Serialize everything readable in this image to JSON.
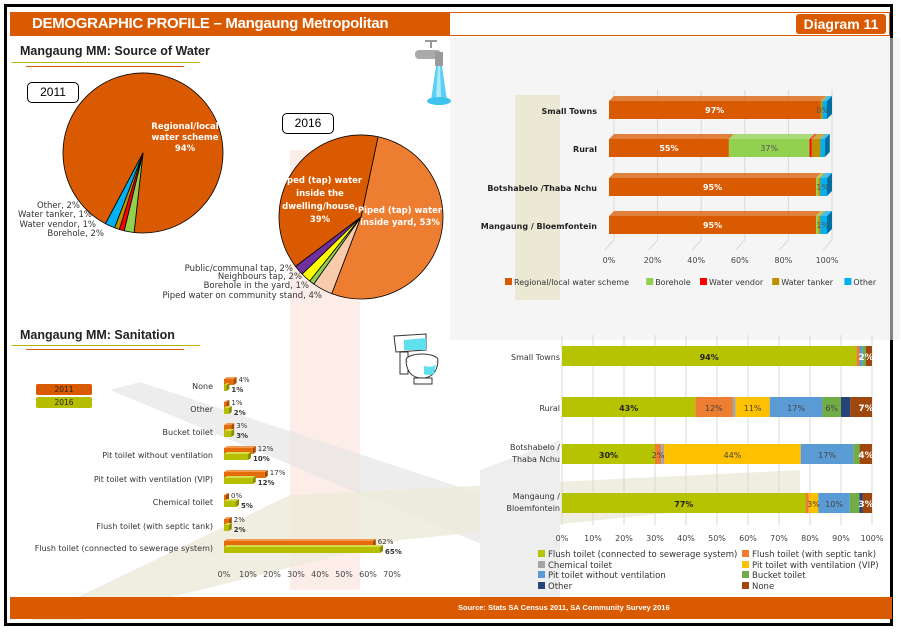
{
  "header": {
    "title": "DEMOGRAPHIC PROFILE – Mangaung Metropolitan Municipality",
    "badge": "Diagram 11"
  },
  "footer": {
    "source": "Source: Stats SA Census 2011, SA Community Survey 2016"
  },
  "icons": [
    "water-tap-icon",
    "toilet-icon"
  ],
  "colors": {
    "brand_orange": "#d95a00",
    "olive": "#b6b100"
  },
  "chart_data": [
    {
      "id": "water_pie_2011",
      "type": "pie",
      "section_title": "Mangaung MM: Source of Water",
      "title": "2011",
      "slices": [
        {
          "label": "Regional/local water scheme",
          "value": 94,
          "color": "#d95a00"
        },
        {
          "label": "Borehole",
          "value": 2,
          "color": "#92d050"
        },
        {
          "label": "Water vendor",
          "value": 1,
          "color": "#ff0000"
        },
        {
          "label": "Water tanker",
          "value": 1,
          "color": "#bf9000"
        },
        {
          "label": "Other",
          "value": 2,
          "color": "#00b0f0"
        }
      ]
    },
    {
      "id": "water_pie_2016",
      "type": "pie",
      "title": "2016",
      "slices": [
        {
          "label": "Piped (tap) water inside yard",
          "value": 53,
          "color": "#ed7d31"
        },
        {
          "label": "Piped water on community stand",
          "value": 4,
          "color": "#f8cbad"
        },
        {
          "label": "Borehole in the yard",
          "value": 1,
          "color": "#92d050"
        },
        {
          "label": "Neighbours tap",
          "value": 2,
          "color": "#ffff00"
        },
        {
          "label": "Public/communal tap",
          "value": 2,
          "color": "#7030a0"
        },
        {
          "label": "Piped (tap) water inside the dwelling/house",
          "value": 39,
          "color": "#d95a00"
        }
      ]
    },
    {
      "id": "water_by_area",
      "type": "bar",
      "orientation": "horizontal-stacked-100",
      "categories": [
        "Small Towns",
        "Rural",
        "Botshabelo /Thaba Nchu",
        "Mangaung / Bloemfontein"
      ],
      "series": [
        {
          "name": "Regional/local water scheme",
          "color": "#d95a00",
          "values": [
            97,
            55,
            95,
            95
          ]
        },
        {
          "name": "Borehole",
          "color": "#92d050",
          "values": [
            0,
            37,
            1,
            1
          ]
        },
        {
          "name": "Water vendor",
          "color": "#ff0000",
          "values": [
            0,
            1,
            0,
            0
          ]
        },
        {
          "name": "Water tanker",
          "color": "#bf9000",
          "values": [
            1,
            4,
            1,
            1
          ]
        },
        {
          "name": "Other",
          "color": "#00b0f0",
          "values": [
            2,
            2,
            3,
            3
          ]
        }
      ],
      "data_labels": [
        {
          "category": 0,
          "series": 0,
          "text": "97%"
        },
        {
          "category": 0,
          "series": 1,
          "text": "0%"
        },
        {
          "category": 1,
          "series": 0,
          "text": "55%"
        },
        {
          "category": 1,
          "series": 1,
          "text": "37%"
        },
        {
          "category": 2,
          "series": 0,
          "text": "95%"
        },
        {
          "category": 2,
          "series": 1,
          "text": "1%"
        },
        {
          "category": 3,
          "series": 0,
          "text": "95%"
        },
        {
          "category": 3,
          "series": 1,
          "text": "1%"
        }
      ],
      "xticks": [
        "0%",
        "20%",
        "40%",
        "60%",
        "80%",
        "100%"
      ],
      "xlim": [
        0,
        100
      ],
      "legend": "bottom",
      "grid": true
    },
    {
      "id": "sanitation_2011_2016",
      "type": "bar",
      "orientation": "horizontal-grouped",
      "section_title": "Mangaung MM: Sanitation",
      "categories": [
        "None",
        "Other",
        "Bucket toilet",
        "Pit toilet without ventilation",
        "Pit toilet with ventilation (VIP)",
        "Chemical toilet",
        "Flush toilet (with septic tank)",
        "Flush toilet (connected to sewerage system)"
      ],
      "series": [
        {
          "name": "2011",
          "color": "#e46c0a",
          "values": [
            4,
            1,
            3,
            12,
            17,
            0,
            2,
            62
          ]
        },
        {
          "name": "2016",
          "color": "#b6be00",
          "values": [
            1,
            2,
            3,
            10,
            12,
            5,
            2,
            65
          ]
        }
      ],
      "xticks": [
        "0%",
        "10%",
        "20%",
        "30%",
        "40%",
        "50%",
        "60%",
        "70%"
      ],
      "xlim": [
        0,
        70
      ],
      "legend": "left"
    },
    {
      "id": "sanitation_by_area",
      "type": "bar",
      "orientation": "horizontal-stacked-100",
      "categories": [
        "Small Towns",
        "Rural",
        "Botshabelo / Thaba Nchu",
        "Mangaung / Bloemfontein"
      ],
      "series": [
        {
          "name": "Flush toilet (connected to sewerage system)",
          "color": "#b6c300",
          "values": [
            94,
            43,
            30,
            77
          ]
        },
        {
          "name": "Flush toilet (with septic tank)",
          "color": "#ed7d31",
          "values": [
            1,
            12,
            2,
            1
          ]
        },
        {
          "name": "Chemical toilet",
          "color": "#a5a5a5",
          "values": [
            0,
            1,
            1,
            0
          ]
        },
        {
          "name": "Pit toilet with ventilation (VIP)",
          "color": "#ffc000",
          "values": [
            0,
            11,
            44,
            3
          ]
        },
        {
          "name": "Pit toilet without ventilation",
          "color": "#5b9bd5",
          "values": [
            1,
            17,
            17,
            10
          ]
        },
        {
          "name": "Bucket toilet",
          "color": "#70ad47",
          "values": [
            1,
            6,
            2,
            3
          ]
        },
        {
          "name": "Other",
          "color": "#264478",
          "values": [
            0,
            3,
            0,
            1
          ]
        },
        {
          "name": "None",
          "color": "#9e480e",
          "values": [
            2,
            7,
            4,
            3
          ]
        }
      ],
      "data_labels": [
        {
          "category": 0,
          "series": 0,
          "text": "94%"
        },
        {
          "category": 0,
          "series": 7,
          "text": "2%"
        },
        {
          "category": 1,
          "series": 0,
          "text": "43%"
        },
        {
          "category": 1,
          "series": 1,
          "text": "12%"
        },
        {
          "category": 1,
          "series": 3,
          "text": "11%"
        },
        {
          "category": 1,
          "series": 4,
          "text": "17%"
        },
        {
          "category": 1,
          "series": 5,
          "text": "6%"
        },
        {
          "category": 1,
          "series": 7,
          "text": "7%"
        },
        {
          "category": 2,
          "series": 0,
          "text": "30%"
        },
        {
          "category": 2,
          "series": 1,
          "text": "2%"
        },
        {
          "category": 2,
          "series": 3,
          "text": "44%"
        },
        {
          "category": 2,
          "series": 4,
          "text": "17%"
        },
        {
          "category": 2,
          "series": 7,
          "text": "4%"
        },
        {
          "category": 3,
          "series": 0,
          "text": "77%"
        },
        {
          "category": 3,
          "series": 3,
          "text": "3%"
        },
        {
          "category": 3,
          "series": 4,
          "text": "10%"
        },
        {
          "category": 3,
          "series": 7,
          "text": "3%"
        }
      ],
      "xticks": [
        "0%",
        "10%",
        "20%",
        "30%",
        "40%",
        "50%",
        "60%",
        "70%",
        "80%",
        "90%",
        "100%"
      ],
      "xlim": [
        0,
        100
      ],
      "legend": "bottom",
      "grid": true
    }
  ]
}
